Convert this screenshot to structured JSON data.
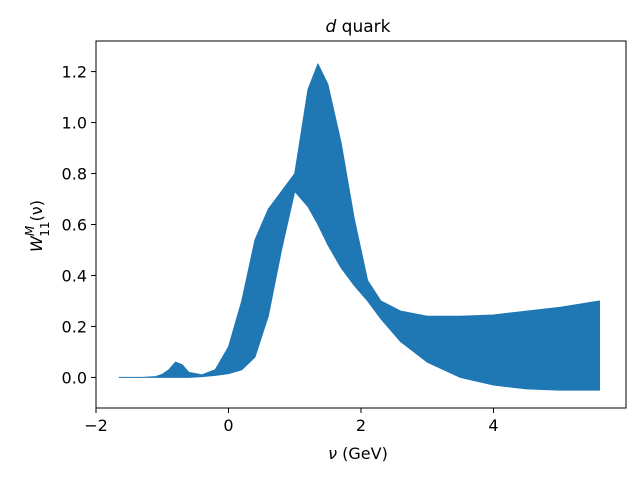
{
  "chart_data": {
    "type": "area",
    "title": {
      "italic": "d",
      "rest": " quark"
    },
    "xlabel": {
      "symbol": "ν",
      "rest": " (GeV)"
    },
    "ylabel": {
      "base": "W",
      "sup": "M",
      "sub": "11",
      "arg": "(ν)"
    },
    "xlim": [
      -2,
      6
    ],
    "ylim": [
      -0.12,
      1.32
    ],
    "xticks": [
      -2,
      0,
      2,
      4
    ],
    "xtick_labels": [
      "−2",
      "0",
      "2",
      "4"
    ],
    "yticks": [
      0.0,
      0.2,
      0.4,
      0.6,
      0.8,
      1.0,
      1.2
    ],
    "ytick_labels": [
      "0.0",
      "0.2",
      "0.4",
      "0.6",
      "0.8",
      "1.0",
      "1.2"
    ],
    "grid": false,
    "fill_color": "#1f77b4",
    "band": {
      "x": [
        -1.65,
        -1.3,
        -1.1,
        -1.0,
        -0.9,
        -0.8,
        -0.7,
        -0.6,
        -0.4,
        -0.2,
        0.0,
        0.2,
        0.4,
        0.6,
        0.8,
        1.0,
        1.2,
        1.35,
        1.5,
        1.7,
        1.9,
        2.1,
        2.3,
        2.6,
        3.0,
        3.5,
        4.0,
        4.5,
        5.0,
        5.6
      ],
      "lower": [
        0.0,
        0.0,
        0.0,
        0.0,
        0.0,
        0.0,
        0.0,
        0.0,
        0.003,
        0.008,
        0.015,
        0.03,
        0.08,
        0.24,
        0.5,
        0.73,
        0.67,
        0.6,
        0.52,
        0.43,
        0.36,
        0.3,
        0.23,
        0.14,
        0.06,
        0.0,
        -0.03,
        -0.045,
        -0.05,
        -0.05
      ],
      "upper": [
        0.0,
        0.0,
        0.003,
        0.012,
        0.03,
        0.06,
        0.05,
        0.02,
        0.01,
        0.03,
        0.12,
        0.3,
        0.54,
        0.66,
        0.73,
        0.8,
        1.13,
        1.23,
        1.15,
        0.92,
        0.62,
        0.38,
        0.3,
        0.26,
        0.24,
        0.24,
        0.245,
        0.26,
        0.275,
        0.3
      ]
    }
  }
}
